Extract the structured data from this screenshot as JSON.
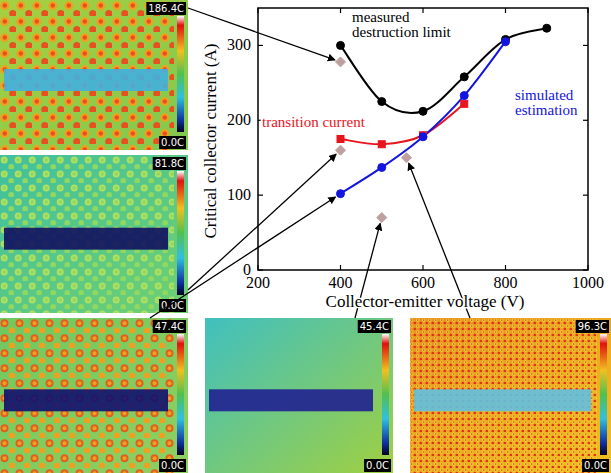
{
  "chart_data": {
    "type": "line",
    "x_label": "Collector-emitter voltage (V)",
    "y_label": "Critical collector current (A)",
    "xlim": [
      200,
      1000
    ],
    "xticks": [
      200,
      400,
      600,
      800,
      1000
    ],
    "ylim": [
      0,
      350
    ],
    "yticks": [
      0,
      100,
      200,
      300
    ],
    "series": [
      {
        "name": "measured destruction limit",
        "color": "#000000",
        "marker": "circle",
        "line_style": "smooth",
        "x": [
          400,
          500,
          600,
          700,
          800,
          900
        ],
        "values": [
          300,
          225,
          212,
          258,
          308,
          323
        ]
      },
      {
        "name": "transition current",
        "color": "#e8141c",
        "marker": "square",
        "line_style": "smooth",
        "x": [
          400,
          500,
          600,
          700
        ],
        "values": [
          175,
          168,
          180,
          222
        ]
      },
      {
        "name": "simulated estimation",
        "color": "#1414e0",
        "marker": "circle",
        "line_style": "smooth",
        "x": [
          400,
          500,
          600,
          700,
          800
        ],
        "values": [
          102,
          137,
          178,
          233,
          305
        ]
      },
      {
        "type": "scatter",
        "color": "#bfa0a0",
        "marker": "diamond",
        "x": [
          400,
          400,
          500,
          560
        ],
        "values": [
          278,
          160,
          70,
          150
        ]
      }
    ]
  },
  "thermal_images": [
    {
      "max_label": "186.4C",
      "min_label": "0.0C",
      "target": {
        "series": 3,
        "index": 0
      }
    },
    {
      "max_label": "81.8C",
      "min_label": "0.0C",
      "target": {
        "series": 3,
        "index": 1
      }
    },
    {
      "max_label": "47.4C",
      "min_label": "0.0C",
      "target": {
        "series": 2,
        "index": 0
      }
    },
    {
      "max_label": "45.4C",
      "min_label": "0.0C",
      "target": {
        "series": 3,
        "index": 2
      }
    },
    {
      "max_label": "96.3C",
      "min_label": "0.0C",
      "target": {
        "series": 3,
        "index": 3
      }
    }
  ]
}
